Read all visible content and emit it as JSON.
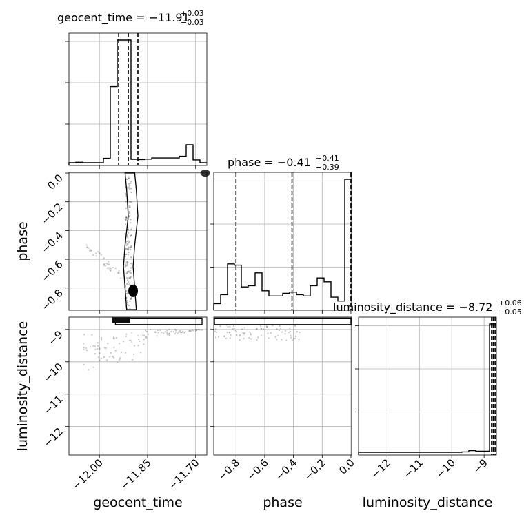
{
  "chart_data": {
    "type": "corner",
    "parameters": [
      "geocent_time",
      "phase",
      "luminosity_distance"
    ],
    "titles": [
      {
        "param": "geocent_time",
        "text": "geocent_time = −11.91",
        "plus": "+0.03",
        "minus": "−0.03"
      },
      {
        "param": "phase",
        "text": "phase = −0.41",
        "plus": "+0.41",
        "minus": "−0.39"
      },
      {
        "param": "luminosity_distance",
        "text": "luminosity_distance = −8.72",
        "plus": "+0.06",
        "minus": "−0.05"
      }
    ],
    "axis_labels": {
      "geocent_time": "geocent_time",
      "phase": "phase",
      "luminosity_distance": "luminosity_distance"
    },
    "ranges": {
      "geocent_time": [
        -12.095,
        -11.665
      ],
      "phase": [
        -0.955,
        0.005
      ],
      "luminosity_distance": [
        -12.88,
        -8.62
      ]
    },
    "ticks": {
      "geocent_time": [
        -12.0,
        -11.85,
        -11.7
      ],
      "phase": [
        -0.8,
        -0.6,
        -0.4,
        -0.2,
        0.0
      ],
      "luminosity_distance": [
        -12,
        -11,
        -10,
        -9
      ]
    },
    "tick_labels": {
      "geocent_time": [
        "−12.00",
        "−11.85",
        "−11.70"
      ],
      "phase": [
        "−0.8",
        "−0.6",
        "−0.4",
        "−0.2",
        "0.0"
      ],
      "luminosity_distance": [
        "−12",
        "−11",
        "−10",
        "−9"
      ]
    },
    "quantiles": {
      "geocent_time": [
        -11.94,
        -11.91,
        -11.88
      ],
      "phase": [
        -0.8,
        -0.41,
        0.0
      ],
      "luminosity_distance": [
        -8.77,
        -8.72,
        -8.66
      ]
    },
    "histograms": {
      "geocent_time": {
        "edges": [
          -12.095,
          -12.0735,
          -12.052,
          -12.0305,
          -12.009,
          -11.9875,
          -11.966,
          -11.9445,
          -11.923,
          -11.9015,
          -11.88,
          -11.8585,
          -11.837,
          -11.8155,
          -11.794,
          -11.7725,
          -11.751,
          -11.7295,
          -11.708,
          -11.6865,
          -11.665
        ],
        "counts": [
          0,
          0.4,
          0,
          0,
          0,
          3.6,
          62,
          100,
          100,
          2.8,
          2.6,
          2.9,
          3.9,
          3.9,
          3.9,
          3.9,
          5.3,
          14.6,
          2.3,
          0
        ]
      },
      "phase": {
        "edges": [
          -0.955,
          -0.907,
          -0.859,
          -0.811,
          -0.763,
          -0.715,
          -0.667,
          -0.619,
          -0.571,
          -0.523,
          -0.475,
          -0.427,
          -0.379,
          -0.331,
          -0.283,
          -0.235,
          -0.187,
          -0.139,
          -0.091,
          -0.043,
          0.005
        ],
        "counts": [
          3,
          10,
          34,
          33,
          16,
          17,
          27,
          13,
          9,
          9,
          11,
          12,
          10,
          9,
          17,
          23,
          20,
          8,
          5,
          100
        ]
      },
      "luminosity_distance": {
        "edges": [
          -12.88,
          -12.667,
          -12.454,
          -12.241,
          -12.028,
          -11.815,
          -11.602,
          -11.389,
          -11.176,
          -10.963,
          -10.75,
          -10.537,
          -10.324,
          -10.111,
          -9.898,
          -9.685,
          -9.472,
          -9.259,
          -9.046,
          -8.833,
          -8.62
        ],
        "counts": [
          0,
          0,
          0,
          0,
          0,
          0,
          0,
          0,
          0,
          0,
          0,
          0,
          0,
          0,
          0,
          0.3,
          1.3,
          0.8,
          0.8,
          100
        ]
      }
    },
    "grid": true
  }
}
